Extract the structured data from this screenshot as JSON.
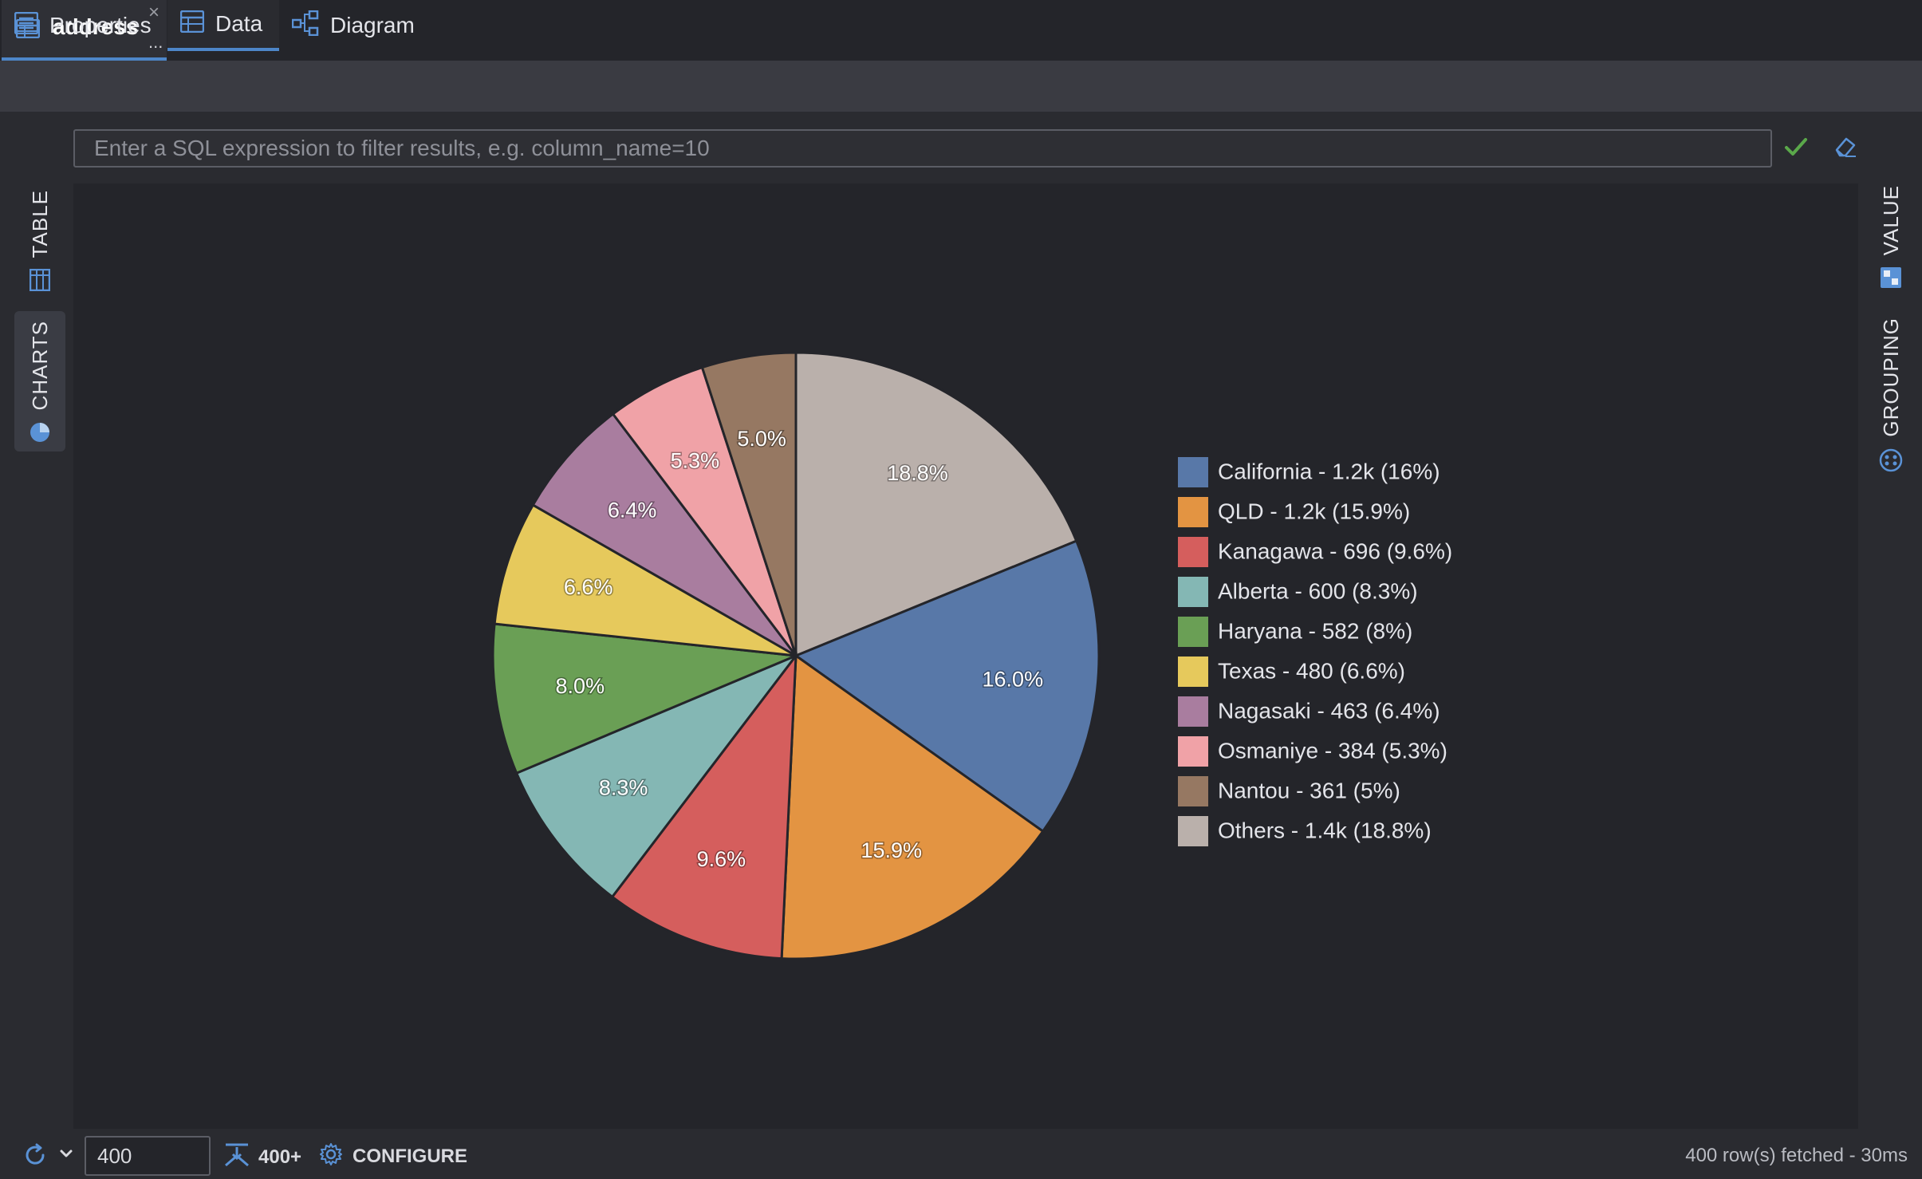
{
  "doc_tab": {
    "label": "address",
    "close": "×",
    "more": "..."
  },
  "subtabs": [
    {
      "label": "Properties"
    },
    {
      "label": "Data"
    },
    {
      "label": "Diagram"
    }
  ],
  "filter": {
    "placeholder": "Enter a SQL expression to filter results, e.g. column_name=10"
  },
  "left_tabs": {
    "table": "TABLE",
    "charts": "CHARTS"
  },
  "right_tabs": {
    "value": "VALUE",
    "grouping": "GROUPING"
  },
  "bottom": {
    "limit_value": "400",
    "fetch_more": "400+",
    "configure": "CONFIGURE",
    "status": "400 row(s) fetched - 30ms"
  },
  "chart_data": {
    "type": "pie",
    "slices": [
      {
        "legend": "California - 1.2k (16%)",
        "value": 16.0,
        "label": "16.0%",
        "color": "#5878a8"
      },
      {
        "legend": "QLD - 1.2k (15.9%)",
        "value": 15.9,
        "label": "15.9%",
        "color": "#e39442"
      },
      {
        "legend": "Kanagawa - 696 (9.6%)",
        "value": 9.6,
        "label": "9.6%",
        "color": "#d55e5d"
      },
      {
        "legend": "Alberta - 600 (8.3%)",
        "value": 8.3,
        "label": "8.3%",
        "color": "#84b7b4"
      },
      {
        "legend": "Haryana - 582 (8%)",
        "value": 8.0,
        "label": "8.0%",
        "color": "#6a9f55"
      },
      {
        "legend": "Texas - 480 (6.6%)",
        "value": 6.6,
        "label": "6.6%",
        "color": "#e6c95c"
      },
      {
        "legend": "Nagasaki - 463 (6.4%)",
        "value": 6.4,
        "label": "6.4%",
        "color": "#a97d9f"
      },
      {
        "legend": "Osmaniye - 384 (5.3%)",
        "value": 5.3,
        "label": "5.3%",
        "color": "#f0a2a7"
      },
      {
        "legend": "Nantou - 361 (5%)",
        "value": 5.0,
        "label": "5.0%",
        "color": "#967862"
      },
      {
        "legend": "Others - 1.4k (18.8%)",
        "value": 18.8,
        "label": "18.8%",
        "color": "#bab0ab"
      }
    ],
    "start": "top, clockwise from Others",
    "legend_position": "right"
  },
  "colors": {
    "accent": "#4d86c9",
    "apply_check": "#5aa84a"
  }
}
